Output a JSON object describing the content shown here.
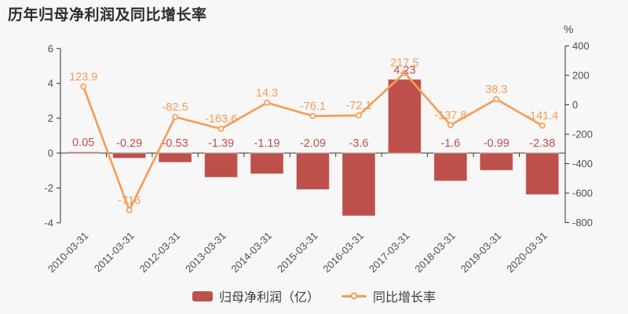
{
  "header": {
    "title": "历年归母净利润及同比增长率"
  },
  "legend": {
    "items": [
      {
        "label": "归母净利润（亿）",
        "type": "bar"
      },
      {
        "label": "同比增长率",
        "type": "line"
      }
    ]
  },
  "colors": {
    "background": "#f7f7f7",
    "bar": "#be504c",
    "bar_border": "rgba(255,255,255,0.4)",
    "bar_label": "#c0504d",
    "line": "#f89b53",
    "line_label": "#f89b53",
    "marker_fill": "#f7f7f7",
    "axis": "#333333",
    "axis_text": "#4d4d4d",
    "title_text": "#2d2d2d",
    "legend_text": "#3d3d3d"
  },
  "chart_data": {
    "type": "bar-line-combo",
    "title": "历年归母净利润及同比增长率",
    "categories": [
      "2010-03-31",
      "2011-03-31",
      "2012-03-31",
      "2013-03-31",
      "2014-03-31",
      "2015-03-31",
      "2016-03-31",
      "2017-03-31",
      "2018-03-31",
      "2019-03-31",
      "2020-03-31"
    ],
    "series": [
      {
        "name": "归母净利润（亿）",
        "type": "bar",
        "y_axis": "left",
        "color": "#be504c",
        "values": [
          0.05,
          -0.29,
          -0.53,
          -1.39,
          -1.19,
          -2.09,
          -3.6,
          4.23,
          -1.6,
          -0.99,
          -2.38
        ],
        "labels": [
          "0.05",
          "-0.29",
          "-0.53",
          "-1.39",
          "-1.19",
          "-2.09",
          "-3.6",
          "4.23",
          "-1.6",
          "-0.99",
          "-2.38"
        ]
      },
      {
        "name": "同比增长率",
        "type": "line",
        "y_axis": "right",
        "color": "#f89b53",
        "values": [
          123.9,
          -716,
          -82.5,
          -163.6,
          14.3,
          -76.1,
          -72.1,
          217.5,
          -137.8,
          38.3,
          -141.4
        ],
        "labels": [
          "123.9",
          "-716",
          "-82.5",
          "-163.6",
          "14.3",
          "-76.1",
          "-72.1",
          "217.5",
          "-137.8",
          "38.3",
          "-141.4"
        ]
      }
    ],
    "left_axis": {
      "min": -4,
      "max": 6,
      "ticks": [
        6,
        4,
        2,
        0,
        -2,
        -4
      ]
    },
    "right_axis": {
      "min": -800,
      "max": 400,
      "ticks": [
        400,
        200,
        0,
        -200,
        -400,
        -600,
        -800
      ],
      "unit": "%"
    },
    "grid": false,
    "legend_position": "bottom",
    "x_label_rotation": -45,
    "value_labels_shown": true
  }
}
